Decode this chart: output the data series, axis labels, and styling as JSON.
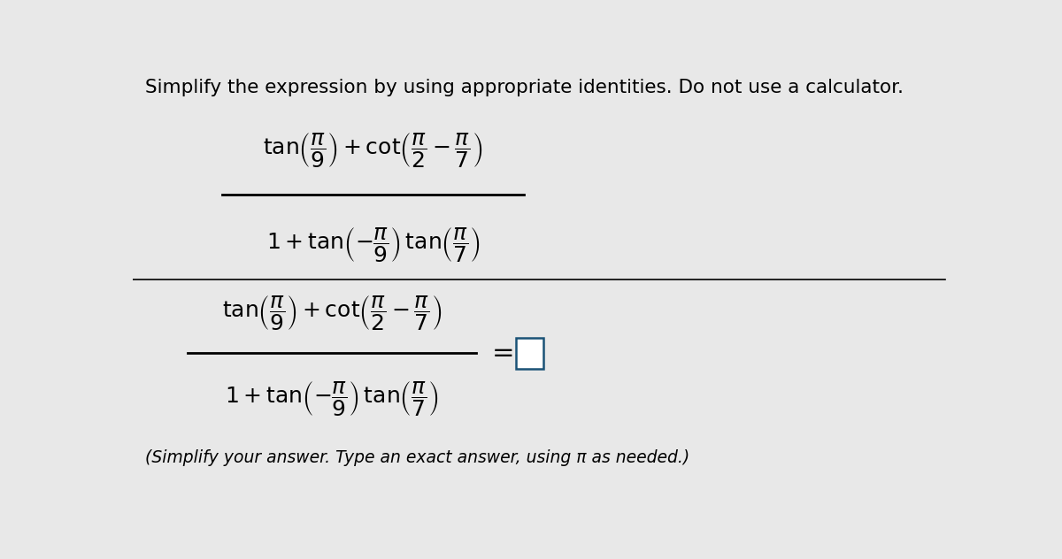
{
  "title": "Simplify the expression by using appropriate identities. Do not use a calculator.",
  "title_fontsize": 15.5,
  "background_color": "#e8e8e8",
  "text_color": "#000000",
  "fraction_line_color": "#000000",
  "separator_line_color": "#000000",
  "bottom_note": "(Simplify your answer. Type an exact answer, using π as needed.)",
  "answer_box_color": "#ffffff",
  "answer_box_edge": "#1a5276",
  "num_str_top": "$\\mathrm{tan}\\left(\\dfrac{\\pi}{9}\\right) + \\mathrm{cot}\\left(\\dfrac{\\pi}{2}-\\dfrac{\\pi}{7}\\right)$",
  "den_str_top": "$1 + \\mathrm{tan}\\left(-\\dfrac{\\pi}{9}\\right)\\,\\mathrm{tan}\\left(\\dfrac{\\pi}{7}\\right)$",
  "num_str_bot": "$\\mathrm{tan}\\left(\\dfrac{\\pi}{9}\\right) + \\mathrm{cot}\\left(\\dfrac{\\pi}{2}-\\dfrac{\\pi}{7}\\right)$",
  "den_str_bot": "$1 + \\mathrm{tan}\\left(-\\dfrac{\\pi}{9}\\right)\\,\\mathrm{tan}\\left(\\dfrac{\\pi}{7}\\right)$",
  "expr_fontsize": 18,
  "note_fontsize": 13.5
}
